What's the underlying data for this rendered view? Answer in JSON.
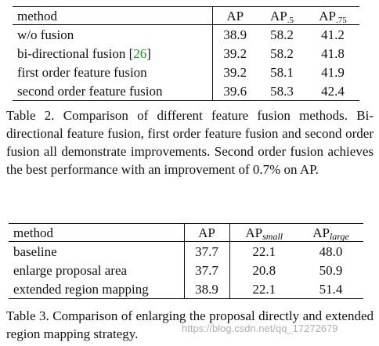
{
  "table2": {
    "headers": {
      "method": "method",
      "ap": "AP",
      "ap50_base": "AP",
      "ap50_sub": ".5",
      "ap75_base": "AP",
      "ap75_sub": ".75"
    },
    "rows": [
      {
        "method": "w/o fusion",
        "ap": "38.9",
        "ap50": "58.2",
        "ap75": "41.2"
      },
      {
        "method": "bi-directional fusion ",
        "cite_open": "[",
        "cite_num": "26",
        "cite_close": "]",
        "ap": "39.2",
        "ap50": "58.2",
        "ap75": "41.8"
      },
      {
        "method": "first order feature fusion",
        "ap": "39.2",
        "ap50": "58.1",
        "ap75": "41.9"
      },
      {
        "method": "second order feature fusion",
        "ap": "39.6",
        "ap50": "58.3",
        "ap75": "42.4"
      }
    ],
    "caption": "Table 2. Comparison of different feature fusion methods. Bi-directional feature fusion, first order feature fusion and second order fusion all demonstrate improvements. Second order fusion achieves the best performance with an improvement of 0.7% on AP."
  },
  "table3": {
    "headers": {
      "method": "method",
      "ap": "AP",
      "ap_small_base": "AP",
      "ap_small_sub": "small",
      "ap_large_base": "AP",
      "ap_large_sub": "large"
    },
    "rows": [
      {
        "method": "baseline",
        "ap": "37.7",
        "ap_small": "22.1",
        "ap_large": "48.0"
      },
      {
        "method": "enlarge proposal area",
        "ap": "37.7",
        "ap_small": "20.8",
        "ap_large": "50.9"
      },
      {
        "method": "extended region mapping",
        "ap": "38.9",
        "ap_small": "22.1",
        "ap_large": "51.4"
      }
    ],
    "caption": "Table 3. Comparison of enlarging the proposal directly and extended region mapping strategy."
  },
  "watermark": "https://blog.csdn.net/qq_17272679"
}
